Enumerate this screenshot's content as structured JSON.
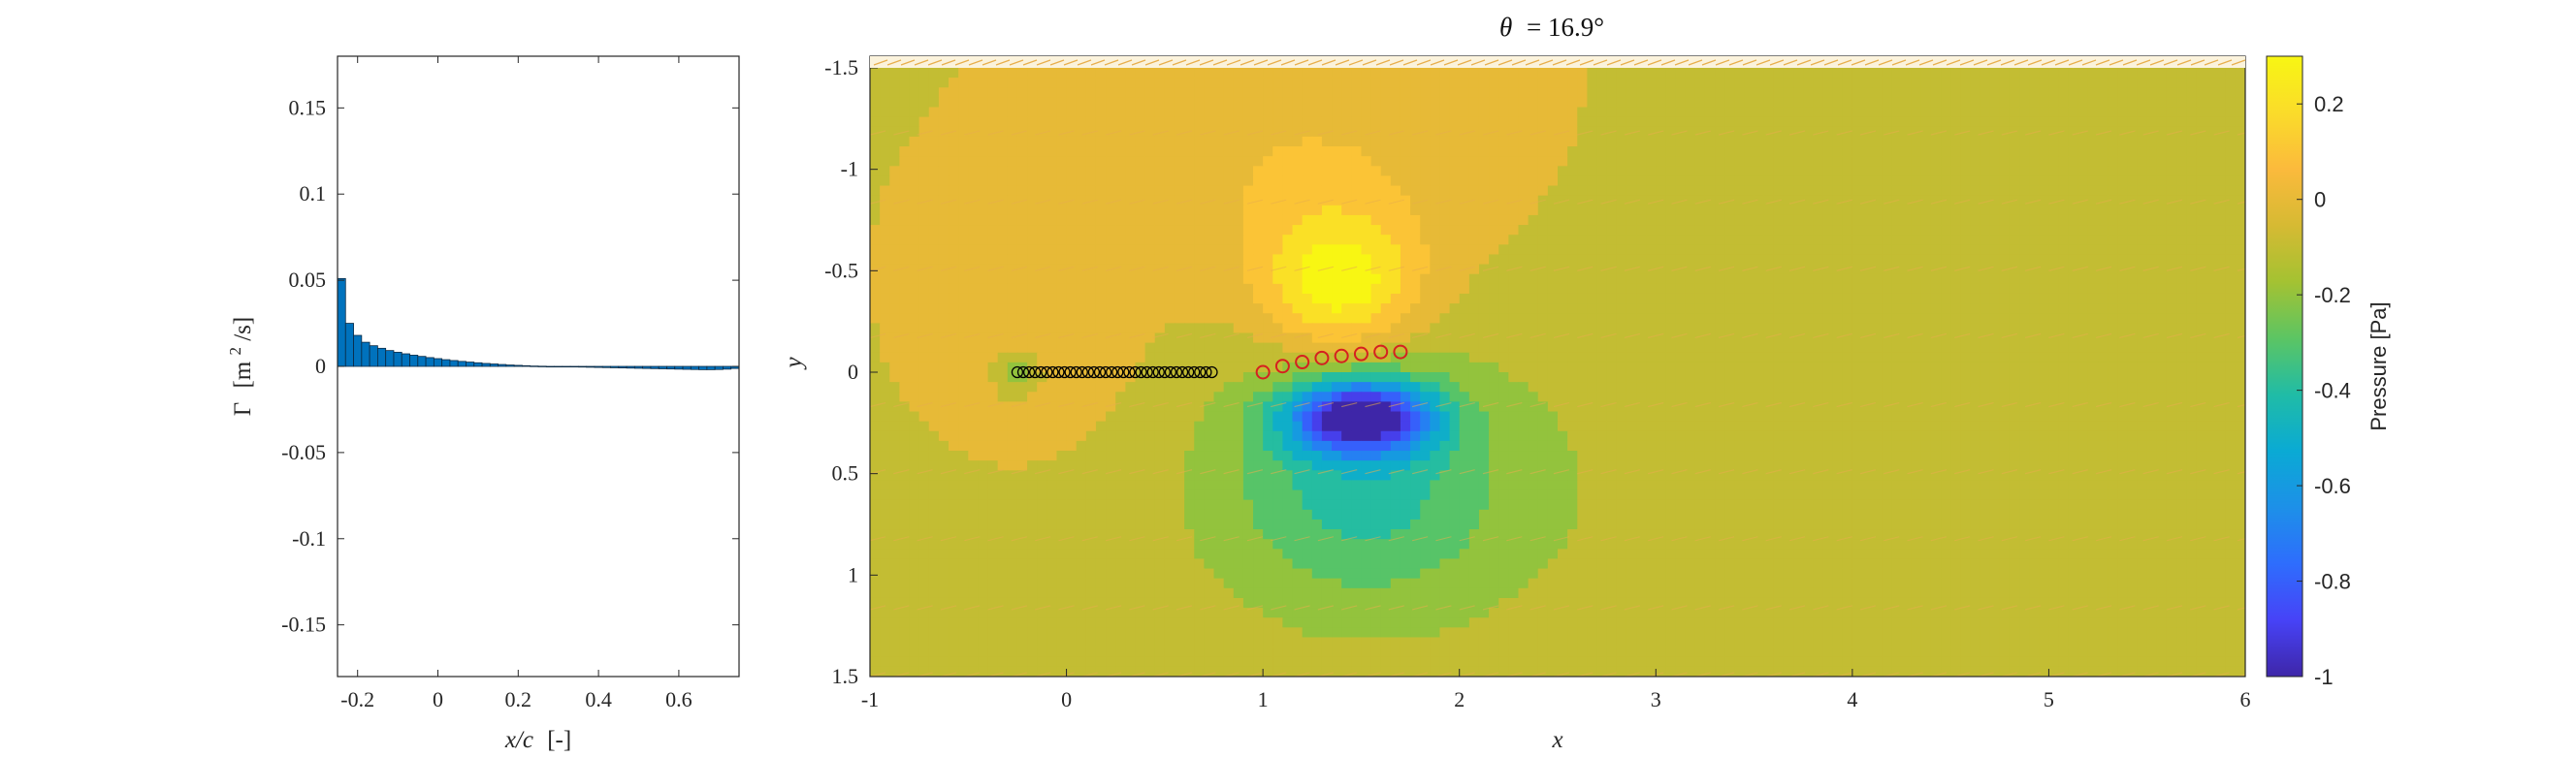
{
  "chart_data": [
    {
      "type": "bar",
      "title": "",
      "xlabel_italic": "x/c",
      "xlabel_unit": "[-]",
      "ylabel_symbol": "Γ",
      "ylabel_unit_pre": "[m",
      "ylabel_unit_sup": "2",
      "ylabel_unit_post": "/s]",
      "xlim": [
        -0.25,
        0.75
      ],
      "ylim": [
        -0.18,
        0.18
      ],
      "xticks": [
        {
          "value": -0.2,
          "label": "-0.2"
        },
        {
          "value": 0,
          "label": "0"
        },
        {
          "value": 0.2,
          "label": "0.2"
        },
        {
          "value": 0.4,
          "label": "0.4"
        },
        {
          "value": 0.6,
          "label": "0.6"
        }
      ],
      "yticks": [
        {
          "value": 0.15,
          "label": "0.15"
        },
        {
          "value": 0.1,
          "label": "0.1"
        },
        {
          "value": 0.05,
          "label": "0.05"
        },
        {
          "value": 0,
          "label": "0"
        },
        {
          "value": -0.05,
          "label": "-0.05"
        },
        {
          "value": -0.1,
          "label": "-0.1"
        },
        {
          "value": -0.15,
          "label": "-0.15"
        }
      ],
      "bar_color": "#0072BD",
      "bar_width": 0.02,
      "x": [
        -0.24,
        -0.22,
        -0.2,
        -0.18,
        -0.16,
        -0.14,
        -0.12,
        -0.1,
        -0.08,
        -0.06,
        -0.04,
        -0.02,
        0.0,
        0.02,
        0.04,
        0.06,
        0.08,
        0.1,
        0.12,
        0.14,
        0.16,
        0.18,
        0.2,
        0.22,
        0.24,
        0.26,
        0.28,
        0.3,
        0.32,
        0.34,
        0.36,
        0.38,
        0.4,
        0.42,
        0.44,
        0.46,
        0.48,
        0.5,
        0.52,
        0.54,
        0.56,
        0.58,
        0.6,
        0.62,
        0.64,
        0.66,
        0.68,
        0.7,
        0.72,
        0.74
      ],
      "values": [
        0.051,
        0.025,
        0.018,
        0.014,
        0.012,
        0.0105,
        0.0092,
        0.0082,
        0.0073,
        0.0065,
        0.0058,
        0.0051,
        0.0045,
        0.0039,
        0.0034,
        0.0029,
        0.0025,
        0.0021,
        0.0017,
        0.0014,
        0.0011,
        0.0008,
        0.0006,
        0.0004,
        0.0002,
        0.0001,
        0.0,
        -0.0001,
        -0.0002,
        -0.0003,
        -0.0004,
        -0.0005,
        -0.0006,
        -0.0007,
        -0.0008,
        -0.0009,
        -0.001,
        -0.0011,
        -0.0012,
        -0.0013,
        -0.0014,
        -0.0015,
        -0.0016,
        -0.0017,
        -0.0018,
        -0.0019,
        -0.0019,
        -0.0018,
        -0.0016,
        -0.0012
      ]
    },
    {
      "type": "heatmap",
      "title_symbol": "θ",
      "title_value": "= 16.9°",
      "xlabel": "x",
      "ylabel": "y",
      "xlim": [
        -1,
        6
      ],
      "ylim": [
        -1.5,
        1.5
      ],
      "y_reversed": true,
      "xticks": [
        {
          "value": -1,
          "label": "-1"
        },
        {
          "value": 0,
          "label": "0"
        },
        {
          "value": 1,
          "label": "1"
        },
        {
          "value": 2,
          "label": "2"
        },
        {
          "value": 3,
          "label": "3"
        },
        {
          "value": 4,
          "label": "4"
        },
        {
          "value": 5,
          "label": "5"
        },
        {
          "value": 6,
          "label": "6"
        }
      ],
      "yticks": [
        {
          "value": -1.5,
          "label": "-1.5"
        },
        {
          "value": -1,
          "label": "-1"
        },
        {
          "value": -0.5,
          "label": "-0.5"
        },
        {
          "value": 0,
          "label": "0"
        },
        {
          "value": 0.5,
          "label": "0.5"
        },
        {
          "value": 1,
          "label": "1"
        },
        {
          "value": 1.5,
          "label": "1.5"
        }
      ],
      "background_value": -0.05,
      "pressure_sources": [
        {
          "x": 1.4,
          "y": -0.42,
          "amp": 0.36,
          "sx": 0.38,
          "sy": 0.34
        },
        {
          "x": 1.25,
          "y": -0.9,
          "amp": 0.12,
          "sx": 0.8,
          "sy": 0.6
        },
        {
          "x": -0.15,
          "y": -0.15,
          "amp": 0.09,
          "sx": 0.55,
          "sy": 0.6
        },
        {
          "x": 1.5,
          "y": 0.22,
          "amp": -0.88,
          "sx": 0.36,
          "sy": 0.18
        },
        {
          "x": 1.5,
          "y": 0.55,
          "amp": -0.28,
          "sx": 0.7,
          "sy": 0.6
        },
        {
          "x": 2.3,
          "y": 0.6,
          "amp": -0.08,
          "sx": 2.6,
          "sy": 1.1
        },
        {
          "x": -0.25,
          "y": 0.0,
          "amp": -0.18,
          "sx": 0.12,
          "sy": 0.12
        }
      ],
      "wake_points": [
        {
          "x": -0.25,
          "y": 0
        },
        {
          "x": -0.22,
          "y": 0
        },
        {
          "x": -0.19,
          "y": 0
        },
        {
          "x": -0.16,
          "y": 0
        },
        {
          "x": -0.13,
          "y": 0
        },
        {
          "x": -0.1,
          "y": 0
        },
        {
          "x": -0.07,
          "y": 0
        },
        {
          "x": -0.04,
          "y": 0
        },
        {
          "x": -0.01,
          "y": 0
        },
        {
          "x": 0.02,
          "y": 0
        },
        {
          "x": 0.05,
          "y": 0
        },
        {
          "x": 0.08,
          "y": 0
        },
        {
          "x": 0.11,
          "y": 0
        },
        {
          "x": 0.14,
          "y": 0
        },
        {
          "x": 0.17,
          "y": 0
        },
        {
          "x": 0.2,
          "y": 0
        },
        {
          "x": 0.23,
          "y": 0
        },
        {
          "x": 0.26,
          "y": 0
        },
        {
          "x": 0.29,
          "y": 0
        },
        {
          "x": 0.32,
          "y": 0
        },
        {
          "x": 0.35,
          "y": 0
        },
        {
          "x": 0.38,
          "y": 0
        },
        {
          "x": 0.41,
          "y": 0
        },
        {
          "x": 0.44,
          "y": 0
        },
        {
          "x": 0.47,
          "y": 0
        },
        {
          "x": 0.5,
          "y": 0
        },
        {
          "x": 0.53,
          "y": 0
        },
        {
          "x": 0.56,
          "y": 0
        },
        {
          "x": 0.59,
          "y": 0
        },
        {
          "x": 0.62,
          "y": 0
        },
        {
          "x": 0.65,
          "y": 0
        },
        {
          "x": 0.68,
          "y": 0
        },
        {
          "x": 0.71,
          "y": 0
        },
        {
          "x": 0.74,
          "y": 0
        }
      ],
      "wake_color": "#000000",
      "plate_points": [
        {
          "x": 1.0,
          "y": 0.0
        },
        {
          "x": 1.1,
          "y": -0.03
        },
        {
          "x": 1.2,
          "y": -0.05
        },
        {
          "x": 1.3,
          "y": -0.07
        },
        {
          "x": 1.4,
          "y": -0.08
        },
        {
          "x": 1.5,
          "y": -0.09
        },
        {
          "x": 1.6,
          "y": -0.1
        },
        {
          "x": 1.7,
          "y": -0.1
        }
      ],
      "plate_color": "#D62020",
      "vector_color": "#E8AE4C"
    }
  ],
  "colorbar": {
    "label": "Pressure [Pa]",
    "range": [
      -1,
      0.3
    ],
    "ticks": [
      {
        "value": 0.2,
        "label": "0.2"
      },
      {
        "value": 0,
        "label": "0"
      },
      {
        "value": -0.2,
        "label": "-0.2"
      },
      {
        "value": -0.4,
        "label": "-0.4"
      },
      {
        "value": -0.6,
        "label": "-0.6"
      },
      {
        "value": -0.8,
        "label": "-0.8"
      },
      {
        "value": -1,
        "label": "-1"
      }
    ],
    "colormap": [
      "#3E26A8",
      "#4743F7",
      "#2E6DFD",
      "#1D90E8",
      "#0AAAD4",
      "#20BCA6",
      "#5CC563",
      "#A4C232",
      "#D6BA33",
      "#FBBA3C",
      "#FADC2A",
      "#F8F613"
    ]
  }
}
